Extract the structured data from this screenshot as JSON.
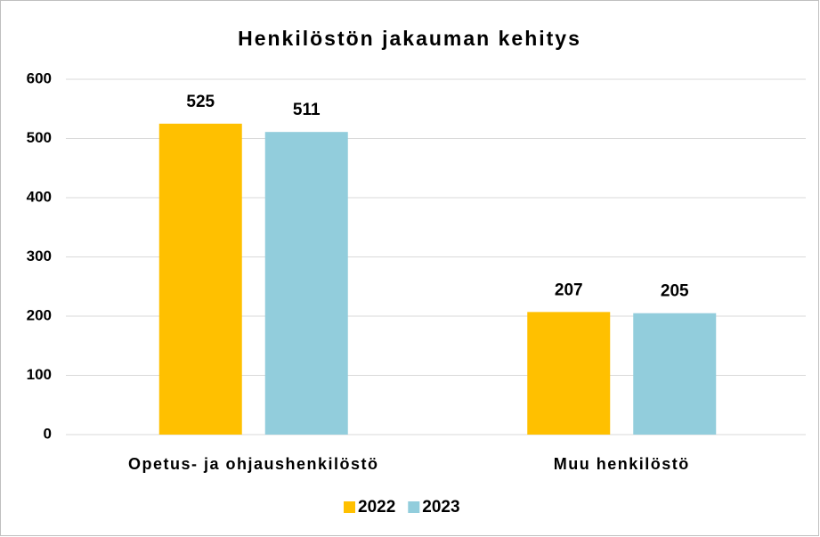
{
  "chart_data": {
    "type": "bar",
    "title": "Henkilöstön jakauman kehitys",
    "categories": [
      "Opetus- ja ohjaushenkilöstö",
      "Muu henkilöstö"
    ],
    "series": [
      {
        "name": "2022",
        "color": "#ffc000",
        "values": [
          525,
          207
        ]
      },
      {
        "name": "2023",
        "color": "#92cddc",
        "values": [
          511,
          205
        ]
      }
    ],
    "ylim": [
      0,
      600
    ],
    "yticks": [
      0,
      100,
      200,
      300,
      400,
      500,
      600
    ],
    "grid": true,
    "legend": "bottom"
  }
}
